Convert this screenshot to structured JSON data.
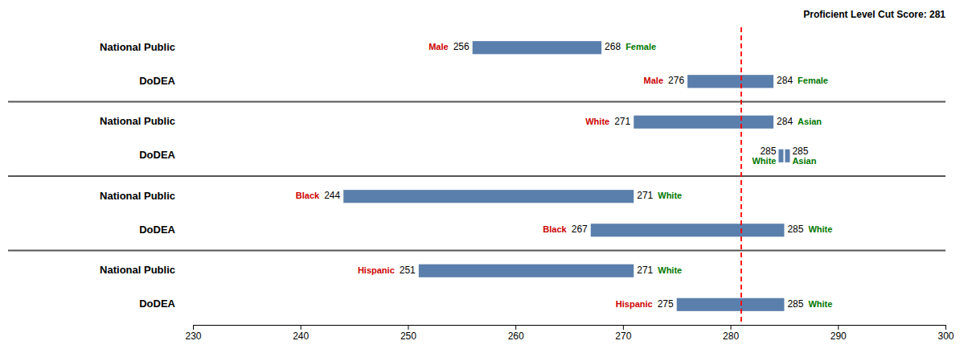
{
  "chart_data": {
    "type": "range_bar",
    "orientation": "horizontal",
    "xlim": [
      230,
      300
    ],
    "xticks": [
      230,
      240,
      250,
      260,
      270,
      280,
      290,
      300
    ],
    "grid": false,
    "color": "#5b7fac",
    "reference_line": {
      "value": 281,
      "label": "Proficient Level Cut Score: 281",
      "color": "red",
      "line_style": "dashed"
    },
    "sections": [
      {
        "rows": [
          {
            "label": "National Public",
            "low": 256,
            "high": 268,
            "low_label": "Male",
            "high_label": "Female",
            "low_color": "#cc0000",
            "high_color": "#007700"
          },
          {
            "label": "DoDEA",
            "low": 276,
            "high": 284,
            "low_label": "Male",
            "high_label": "Female",
            "low_color": "#cc0000",
            "high_color": "#007700"
          }
        ]
      },
      {
        "rows": [
          {
            "label": "National Public",
            "low": 271,
            "high": 284,
            "low_label": "White",
            "high_label": "Asian",
            "low_color": "#cc0000",
            "high_color": "#007700"
          },
          {
            "label": "DoDEA",
            "low": 285,
            "high": 285,
            "low_label": "White",
            "high_label": "Asian",
            "low_color": "#007700",
            "high_color": "#007700"
          }
        ]
      },
      {
        "rows": [
          {
            "label": "National Public",
            "low": 244,
            "high": 271,
            "low_label": "Black",
            "high_label": "White",
            "low_color": "#cc0000",
            "high_color": "#007700"
          },
          {
            "label": "DoDEA",
            "low": 267,
            "high": 285,
            "low_label": "Black",
            "high_label": "White",
            "low_color": "#cc0000",
            "high_color": "#007700"
          }
        ]
      },
      {
        "rows": [
          {
            "label": "National Public",
            "low": 251,
            "high": 271,
            "low_label": "Hispanic",
            "high_label": "White",
            "low_color": "#cc0000",
            "high_color": "#007700"
          },
          {
            "label": "DoDEA",
            "low": 275,
            "high": 285,
            "low_label": "Hispanic",
            "high_label": "White",
            "low_color": "#cc0000",
            "high_color": "#007700"
          }
        ]
      }
    ]
  }
}
